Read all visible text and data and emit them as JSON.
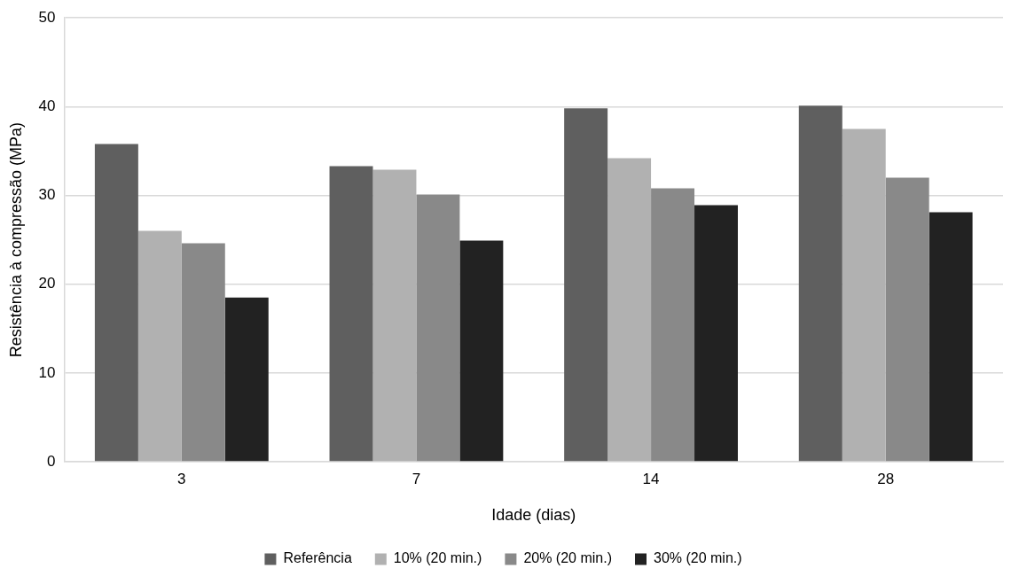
{
  "chart_data": {
    "type": "bar",
    "xlabel": "Idade (dias)",
    "ylabel": "Resistência à compressão (MPa)",
    "categories": [
      "3",
      "7",
      "14",
      "28"
    ],
    "series": [
      {
        "name": "Referência",
        "color": "#5f5f5f",
        "values": [
          35.8,
          33.3,
          39.8,
          40.1
        ]
      },
      {
        "name": "10% (20 min.)",
        "color": "#b1b1b1",
        "values": [
          26.0,
          32.9,
          34.2,
          37.5
        ]
      },
      {
        "name": "20% (20 min.)",
        "color": "#898989",
        "values": [
          24.6,
          30.1,
          30.8,
          32.0
        ]
      },
      {
        "name": "30% (20 min.)",
        "color": "#222222",
        "values": [
          18.5,
          24.9,
          28.9,
          28.1
        ]
      }
    ],
    "ylim": [
      0,
      50
    ],
    "yticks": [
      0,
      10,
      20,
      30,
      40,
      50
    ],
    "grid": "y",
    "legend": "bottom"
  }
}
